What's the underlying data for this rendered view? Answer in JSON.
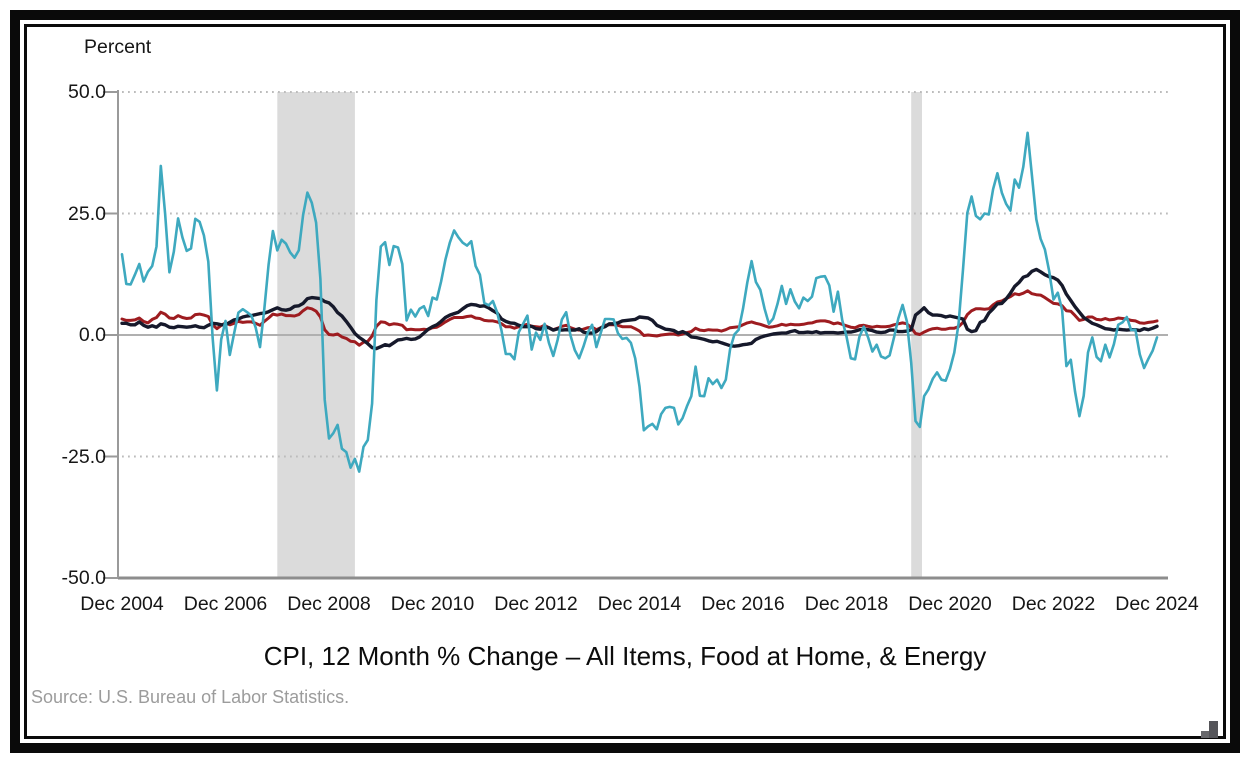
{
  "source_note": "Source: U.S. Bureau of Labor Statistics.",
  "chart_data": {
    "type": "line",
    "title": "CPI, 12 Month % Change – All Items, Food at Home, & Energy",
    "ylabel": "Percent",
    "xlabel": "",
    "ylim": [
      -50,
      50
    ],
    "grid": "dotted horizontal lines at 50, 25, -25; solid line at 0; solid axis at -50",
    "legend": "none",
    "sampling": "monthly, Dec 2004 through Dec 2024",
    "y_ticks": [
      50,
      25,
      0,
      -25,
      -50
    ],
    "y_tick_labels": [
      "50.0",
      "25.0",
      "0.0",
      "-25.0",
      "-50.0"
    ],
    "x_tick_labels": [
      "Dec 2004",
      "Dec 2006",
      "Dec 2008",
      "Dec 2010",
      "Dec 2012",
      "Dec 2014",
      "Dec 2016",
      "Dec 2018",
      "Dec 2020",
      "Dec 2022",
      "Dec 2024"
    ],
    "x_tick_month_step": 24,
    "recession_band_color": "#dbdbdb",
    "recession_bands": [
      {
        "start_month": 36,
        "end_month": 54
      },
      {
        "start_month": 183,
        "end_month": 185.5
      }
    ],
    "series": [
      {
        "name": "All Items",
        "color": "#9e1c20",
        "values": [
          3.3,
          3.0,
          3.0,
          3.1,
          3.5,
          2.8,
          2.5,
          3.2,
          3.6,
          4.7,
          4.3,
          3.5,
          3.4,
          4.0,
          3.6,
          3.4,
          3.5,
          4.2,
          4.3,
          4.1,
          3.8,
          2.1,
          1.3,
          2.0,
          2.5,
          2.1,
          2.4,
          2.8,
          2.6,
          2.7,
          2.7,
          2.4,
          2.0,
          2.8,
          3.5,
          4.3,
          4.1,
          4.3,
          4.0,
          4.0,
          3.9,
          4.2,
          5.0,
          5.6,
          5.4,
          4.9,
          3.7,
          1.1,
          0.1,
          0.0,
          0.2,
          -0.4,
          -0.7,
          -1.3,
          -1.4,
          -2.1,
          -1.5,
          -1.3,
          -0.2,
          1.8,
          2.7,
          2.6,
          2.1,
          2.3,
          2.2,
          2.0,
          1.1,
          1.2,
          1.1,
          1.1,
          1.2,
          1.1,
          1.5,
          1.6,
          2.1,
          2.7,
          3.2,
          3.6,
          3.6,
          3.6,
          3.8,
          3.9,
          3.5,
          3.4,
          3.0,
          2.9,
          2.9,
          2.7,
          2.3,
          1.7,
          1.7,
          1.4,
          1.7,
          2.0,
          2.2,
          1.8,
          1.7,
          1.6,
          2.0,
          1.5,
          1.1,
          1.4,
          1.8,
          2.0,
          1.5,
          1.2,
          1.0,
          1.2,
          1.5,
          1.6,
          1.1,
          1.5,
          2.0,
          2.1,
          2.1,
          2.0,
          1.7,
          1.7,
          1.7,
          1.3,
          0.8,
          -0.1,
          0.0,
          -0.1,
          -0.2,
          0.0,
          0.1,
          0.2,
          0.2,
          0.0,
          0.2,
          0.5,
          0.7,
          1.4,
          1.0,
          0.9,
          1.1,
          1.0,
          1.0,
          0.8,
          1.1,
          1.5,
          1.6,
          1.7,
          2.1,
          2.5,
          2.7,
          2.4,
          2.2,
          1.9,
          1.6,
          1.7,
          1.9,
          2.2,
          2.0,
          2.2,
          2.1,
          2.1,
          2.2,
          2.4,
          2.5,
          2.8,
          2.9,
          2.9,
          2.7,
          2.3,
          2.5,
          2.2,
          1.9,
          1.6,
          1.5,
          1.9,
          2.0,
          1.8,
          1.6,
          1.8,
          1.7,
          1.7,
          1.8,
          2.1,
          2.3,
          2.5,
          2.3,
          1.5,
          0.3,
          0.1,
          0.6,
          1.0,
          1.3,
          1.4,
          1.2,
          1.2,
          1.4,
          1.4,
          1.7,
          2.6,
          4.2,
          5.0,
          5.4,
          5.4,
          5.3,
          5.4,
          6.2,
          6.8,
          7.0,
          7.5,
          7.9,
          8.5,
          8.3,
          8.6,
          9.1,
          8.5,
          8.3,
          8.2,
          7.7,
          7.1,
          6.5,
          6.4,
          6.0,
          5.0,
          4.9,
          4.0,
          3.0,
          3.2,
          3.7,
          3.7,
          3.2,
          3.1,
          3.4,
          3.1,
          3.2,
          3.5,
          3.4,
          3.3,
          3.0,
          2.9,
          2.5,
          2.4,
          2.6,
          2.7,
          2.9
        ]
      },
      {
        "name": "Food at Home",
        "color": "#16192b",
        "values": [
          2.4,
          2.4,
          2.1,
          2.1,
          2.7,
          2.0,
          1.6,
          1.9,
          1.6,
          2.3,
          2.1,
          1.6,
          1.5,
          1.8,
          1.7,
          1.6,
          1.7,
          1.9,
          1.6,
          1.5,
          2.0,
          2.4,
          2.3,
          2.1,
          2.1,
          2.6,
          3.1,
          3.3,
          3.7,
          3.9,
          4.0,
          4.2,
          4.4,
          4.5,
          4.8,
          5.2,
          5.6,
          5.2,
          5.1,
          5.3,
          5.9,
          6.0,
          6.5,
          7.5,
          7.7,
          7.6,
          7.5,
          6.9,
          6.6,
          5.8,
          4.6,
          3.9,
          2.8,
          1.6,
          0.3,
          -0.5,
          -1.1,
          -1.8,
          -2.6,
          -2.8,
          -2.4,
          -2.0,
          -2.2,
          -1.6,
          -1.0,
          -0.9,
          -0.7,
          -0.9,
          -0.8,
          -0.4,
          0.4,
          1.2,
          1.7,
          2.1,
          2.8,
          3.6,
          4.1,
          4.4,
          4.7,
          5.4,
          6.0,
          6.3,
          6.2,
          5.9,
          6.0,
          5.6,
          5.0,
          4.5,
          3.3,
          2.8,
          2.5,
          2.4,
          2.0,
          1.7,
          1.7,
          1.8,
          1.3,
          1.2,
          1.6,
          1.5,
          1.0,
          1.3,
          1.0,
          1.1,
          1.0,
          1.0,
          1.3,
          0.6,
          0.4,
          0.4,
          0.7,
          1.4,
          1.7,
          2.3,
          2.3,
          2.5,
          2.9,
          3.0,
          3.1,
          3.2,
          3.7,
          3.6,
          3.5,
          3.0,
          2.0,
          1.6,
          1.2,
          1.1,
          0.9,
          0.4,
          0.7,
          0.3,
          -0.4,
          -0.5,
          -0.7,
          -0.9,
          -1.2,
          -1.4,
          -1.3,
          -1.6,
          -1.9,
          -2.2,
          -2.3,
          -2.2,
          -2.0,
          -1.9,
          -1.7,
          -0.9,
          -0.5,
          -0.2,
          0.0,
          0.2,
          0.3,
          0.4,
          0.4,
          0.7,
          0.9,
          0.5,
          0.5,
          0.6,
          0.5,
          0.7,
          0.4,
          0.5,
          0.5,
          0.5,
          0.4,
          0.5,
          0.6,
          0.6,
          0.8,
          1.1,
          1.2,
          1.1,
          0.9,
          0.6,
          0.5,
          0.6,
          1.0,
          1.0,
          0.7,
          0.7,
          0.8,
          1.1,
          4.1,
          4.8,
          5.6,
          4.6,
          4.1,
          4.1,
          4.0,
          3.7,
          3.9,
          3.7,
          3.5,
          3.3,
          1.2,
          0.7,
          0.9,
          2.6,
          3.0,
          4.5,
          5.4,
          6.4,
          6.5,
          7.4,
          8.6,
          10.0,
          10.8,
          11.9,
          12.2,
          13.1,
          13.5,
          13.0,
          12.4,
          12.0,
          11.8,
          11.3,
          10.2,
          8.4,
          7.1,
          5.8,
          4.7,
          3.6,
          3.0,
          2.4,
          2.1,
          1.7,
          1.3,
          1.2,
          1.0,
          1.2,
          1.1,
          1.0,
          1.1,
          1.1,
          0.9,
          1.3,
          1.1,
          1.4,
          1.8
        ]
      },
      {
        "name": "Energy",
        "color": "#3ea9bf",
        "values": [
          16.6,
          10.5,
          10.4,
          12.4,
          14.6,
          11.0,
          13.0,
          14.2,
          18.2,
          34.8,
          25.0,
          12.9,
          17.1,
          24.0,
          20.1,
          17.3,
          17.8,
          23.9,
          23.3,
          20.5,
          15.1,
          -0.5,
          -11.4,
          -0.9,
          2.9,
          -4.1,
          0.3,
          4.6,
          5.3,
          4.7,
          4.0,
          1.5,
          -2.5,
          5.3,
          14.5,
          21.4,
          17.4,
          19.6,
          18.8,
          17.0,
          15.9,
          17.4,
          24.7,
          29.3,
          27.2,
          23.1,
          11.5,
          -13.3,
          -21.3,
          -20.2,
          -18.5,
          -23.4,
          -24.1,
          -27.3,
          -25.5,
          -28.1,
          -23.0,
          -21.6,
          -14.1,
          7.2,
          18.2,
          19.1,
          14.4,
          18.3,
          18.0,
          14.6,
          3.0,
          5.2,
          3.8,
          5.4,
          5.9,
          3.9,
          7.7,
          7.3,
          11.0,
          15.5,
          19.0,
          21.5,
          20.1,
          19.0,
          18.4,
          19.3,
          14.2,
          12.4,
          6.6,
          6.1,
          7.0,
          4.6,
          0.9,
          -3.9,
          -3.9,
          -5.0,
          0.6,
          2.3,
          4.0,
          -3.0,
          0.5,
          -1.0,
          2.3,
          -1.6,
          -4.3,
          -1.0,
          3.2,
          4.7,
          -0.1,
          -3.1,
          -4.8,
          -2.4,
          0.5,
          2.1,
          -2.5,
          0.4,
          3.3,
          3.3,
          3.2,
          0.4,
          -0.8,
          -0.6,
          -1.6,
          -4.8,
          -10.6,
          -19.6,
          -18.8,
          -18.3,
          -19.4,
          -16.3,
          -15.0,
          -14.8,
          -15.0,
          -18.4,
          -17.1,
          -14.7,
          -12.6,
          -6.5,
          -12.5,
          -12.6,
          -8.9,
          -10.1,
          -9.2,
          -10.9,
          -9.2,
          -2.9,
          0.1,
          1.1,
          5.4,
          10.8,
          15.2,
          10.9,
          9.3,
          5.4,
          2.3,
          3.4,
          6.4,
          10.1,
          6.4,
          9.4,
          6.9,
          5.5,
          7.7,
          7.0,
          7.9,
          11.7,
          12.0,
          12.1,
          10.2,
          4.8,
          8.9,
          3.1,
          -0.3,
          -4.8,
          -5.0,
          -0.4,
          1.7,
          -0.5,
          -3.4,
          -2.0,
          -4.4,
          -4.8,
          -4.2,
          -0.6,
          3.4,
          6.2,
          2.8,
          -5.7,
          -17.7,
          -18.9,
          -12.6,
          -11.2,
          -9.0,
          -7.7,
          -9.2,
          -9.4,
          -7.0,
          -3.6,
          2.4,
          13.2,
          25.1,
          28.5,
          24.5,
          23.8,
          25.0,
          24.8,
          30.0,
          33.3,
          29.3,
          27.0,
          25.6,
          32.0,
          30.3,
          34.6,
          41.6,
          32.9,
          23.8,
          19.8,
          17.6,
          13.1,
          7.3,
          8.7,
          5.2,
          -6.4,
          -5.1,
          -11.7,
          -16.7,
          -12.5,
          -3.6,
          -0.5,
          -4.5,
          -5.4,
          -2.0,
          -4.6,
          -1.9,
          2.1,
          2.6,
          3.7,
          1.0,
          1.1,
          -4.0,
          -6.8,
          -4.9,
          -3.2,
          -0.5
        ]
      }
    ]
  }
}
